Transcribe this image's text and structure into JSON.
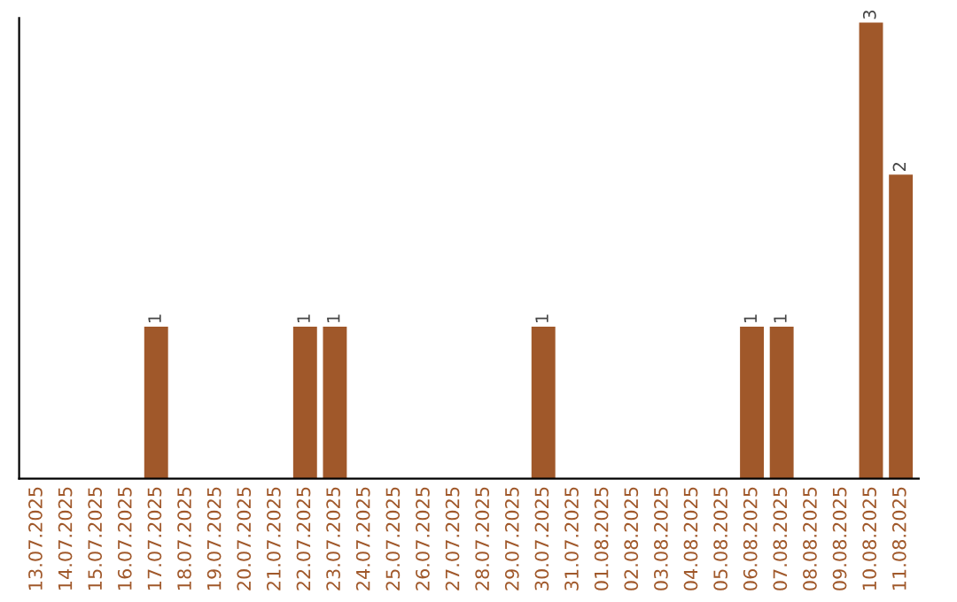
{
  "chart_data": {
    "type": "bar",
    "categories": [
      "13.07.2025",
      "14.07.2025",
      "15.07.2025",
      "16.07.2025",
      "17.07.2025",
      "18.07.2025",
      "19.07.2025",
      "20.07.2025",
      "21.07.2025",
      "22.07.2025",
      "23.07.2025",
      "24.07.2025",
      "25.07.2025",
      "26.07.2025",
      "27.07.2025",
      "28.07.2025",
      "29.07.2025",
      "30.07.2025",
      "31.07.2025",
      "01.08.2025",
      "02.08.2025",
      "03.08.2025",
      "04.08.2025",
      "05.08.2025",
      "06.08.2025",
      "07.08.2025",
      "08.08.2025",
      "09.08.2025",
      "10.08.2025",
      "11.08.2025"
    ],
    "values": [
      0,
      0,
      0,
      0,
      1,
      0,
      0,
      0,
      0,
      1,
      1,
      0,
      0,
      0,
      0,
      0,
      0,
      1,
      0,
      0,
      0,
      0,
      0,
      0,
      1,
      1,
      0,
      0,
      3,
      2
    ],
    "value_labels": [
      null,
      null,
      null,
      null,
      "1",
      null,
      null,
      null,
      null,
      "1",
      "1",
      null,
      null,
      null,
      null,
      null,
      null,
      "1",
      null,
      null,
      null,
      null,
      null,
      null,
      "1",
      "1",
      null,
      null,
      "3",
      "2"
    ],
    "color": "#a0582a",
    "grid": false,
    "legend": false
  }
}
